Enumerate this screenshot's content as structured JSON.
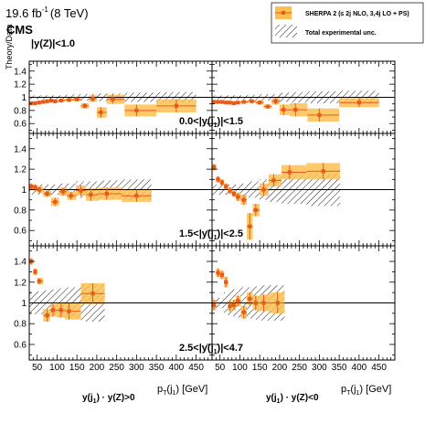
{
  "header": {
    "lumi": "19.6 fb",
    "lumi_exp": "-1",
    "energy": "(8 TeV)",
    "experiment": "CMS",
    "y_title": "Theory/Data",
    "yz_cut": "|y(Z)|<1.0",
    "x_title": "p",
    "x_title_sub": "T",
    "x_title_jet": "(j",
    "x_title_jet_sub": "1",
    "x_title_unit": ") [GeV]",
    "col_label_left_prefix": "y(j",
    "col_label_left_sub": "1",
    "col_label_left_suffix": ") · y(Z)>0",
    "col_label_right_prefix": "y(j",
    "col_label_right_sub": "1",
    "col_label_right_suffix": ") · y(Z)<0"
  },
  "legend": {
    "sherpa": "SHERPA 2 (≤ 2j NLO, 3,4j LO + PS)",
    "exp_unc": "Total experimental unc."
  },
  "rows": [
    {
      "prefix": "0.0<|y(j",
      "sub": "1",
      "suffix": ")|<1.5"
    },
    {
      "prefix": "1.5<|y(j",
      "sub": "1",
      "suffix": ")|<2.5"
    },
    {
      "prefix": "2.5<|y(j",
      "sub": "1",
      "suffix": ")|<4.7"
    }
  ],
  "axes": {
    "x_ticks": [
      50,
      100,
      150,
      200,
      250,
      300,
      350,
      400,
      450
    ],
    "y_ticks_top": [
      "1.4",
      "1.2",
      "1",
      "0.8",
      "0.6"
    ],
    "y_ticks_other": [
      "1.4",
      "1.2",
      "1",
      "0.8",
      "0.6"
    ]
  },
  "colors": {
    "theory_band": "#fdbf50",
    "theory_points": "#e85a1c",
    "hatch": "#000000"
  },
  "chart_data": [
    {
      "panel": "top-left",
      "type": "scatter",
      "xlim": [
        30,
        490
      ],
      "ylim": [
        0.45,
        1.55
      ],
      "x": [
        35,
        45,
        55,
        65,
        75,
        85,
        95,
        110,
        130,
        150,
        170,
        190,
        210,
        240,
        300,
        400
      ],
      "y": [
        0.91,
        0.91,
        0.92,
        0.93,
        0.94,
        0.95,
        0.94,
        0.95,
        0.96,
        0.97,
        0.87,
        0.98,
        0.77,
        0.97,
        0.8,
        0.87
      ],
      "theory_unc": [
        0.02,
        0.02,
        0.02,
        0.02,
        0.02,
        0.02,
        0.02,
        0.02,
        0.02,
        0.03,
        0.04,
        0.05,
        0.08,
        0.07,
        0.09,
        0.1
      ],
      "exp_unc": [
        0.03,
        0.03,
        0.03,
        0.03,
        0.03,
        0.03,
        0.03,
        0.03,
        0.04,
        0.05,
        0.05,
        0.05,
        0.06,
        0.06,
        0.07,
        0.08
      ]
    },
    {
      "panel": "top-right",
      "type": "scatter",
      "xlim": [
        30,
        490
      ],
      "ylim": [
        0.45,
        1.55
      ],
      "x": [
        35,
        45,
        55,
        65,
        75,
        85,
        95,
        110,
        130,
        150,
        170,
        190,
        210,
        240,
        300,
        400
      ],
      "y": [
        0.93,
        0.93,
        0.93,
        0.92,
        0.92,
        0.91,
        0.92,
        0.93,
        0.94,
        0.92,
        0.86,
        0.94,
        0.81,
        0.81,
        0.73,
        0.92
      ],
      "theory_unc": [
        0.02,
        0.02,
        0.02,
        0.02,
        0.02,
        0.02,
        0.02,
        0.02,
        0.02,
        0.03,
        0.03,
        0.05,
        0.08,
        0.1,
        0.1,
        0.07
      ],
      "exp_unc": [
        0.03,
        0.03,
        0.03,
        0.03,
        0.03,
        0.03,
        0.03,
        0.03,
        0.04,
        0.05,
        0.05,
        0.05,
        0.07,
        0.08,
        0.09,
        0.1
      ]
    },
    {
      "panel": "middle-left",
      "type": "scatter",
      "xlim": [
        30,
        490
      ],
      "ylim": [
        0.45,
        1.55
      ],
      "x": [
        35,
        45,
        55,
        75,
        95,
        115,
        135,
        160,
        185,
        225,
        300
      ],
      "y": [
        1.03,
        1.02,
        1.0,
        0.96,
        0.88,
        0.98,
        0.94,
        0.99,
        0.95,
        0.96,
        0.94
      ],
      "theory_unc": [
        0.03,
        0.03,
        0.03,
        0.03,
        0.04,
        0.04,
        0.04,
        0.05,
        0.06,
        0.06,
        0.06
      ],
      "exp_unc": [
        0.05,
        0.05,
        0.05,
        0.05,
        0.05,
        0.06,
        0.06,
        0.08,
        0.08,
        0.09,
        0.1
      ]
    },
    {
      "panel": "middle-right",
      "type": "scatter",
      "xlim": [
        30,
        490
      ],
      "ylim": [
        0.45,
        1.55
      ],
      "x": [
        35,
        45,
        55,
        65,
        75,
        85,
        95,
        110,
        125,
        140,
        160,
        185,
        225,
        310
      ],
      "y": [
        1.22,
        1.1,
        1.07,
        1.03,
        0.99,
        0.96,
        0.93,
        0.9,
        0.64,
        0.8,
        1.0,
        1.09,
        1.17,
        1.18
      ],
      "theory_unc": [
        0.03,
        0.03,
        0.03,
        0.03,
        0.03,
        0.03,
        0.04,
        0.05,
        0.13,
        0.06,
        0.06,
        0.06,
        0.07,
        0.08
      ],
      "exp_unc": [
        0.05,
        0.05,
        0.05,
        0.05,
        0.05,
        0.05,
        0.05,
        0.06,
        0.08,
        0.08,
        0.1,
        0.12,
        0.14,
        0.16
      ]
    },
    {
      "panel": "bottom-left",
      "type": "scatter",
      "xlim": [
        30,
        490
      ],
      "ylim": [
        0.45,
        1.55
      ],
      "x": [
        35,
        45,
        55,
        75,
        90,
        110,
        130,
        190
      ],
      "y": [
        1.4,
        1.3,
        1.21,
        0.88,
        0.93,
        0.93,
        0.92,
        1.09
      ],
      "theory_unc": [
        0.03,
        0.03,
        0.03,
        0.06,
        0.06,
        0.07,
        0.08,
        0.1
      ],
      "exp_unc": [
        0.1,
        0.11,
        0.11,
        0.12,
        0.13,
        0.14,
        0.15,
        0.18
      ]
    },
    {
      "panel": "bottom-right",
      "type": "scatter",
      "xlim": [
        30,
        490
      ],
      "ylim": [
        0.45,
        1.55
      ],
      "x": [
        35,
        45,
        55,
        65,
        75,
        85,
        95,
        110,
        125,
        140,
        160,
        195
      ],
      "y": [
        0.98,
        1.29,
        1.27,
        1.2,
        0.97,
        0.98,
        1.02,
        0.91,
        1.04,
        1.0,
        1.0,
        1.0
      ],
      "theory_unc": [
        0.05,
        0.04,
        0.04,
        0.05,
        0.05,
        0.05,
        0.05,
        0.06,
        0.06,
        0.07,
        0.08,
        0.1
      ],
      "exp_unc": [
        0.05,
        0.05,
        0.05,
        0.1,
        0.12,
        0.13,
        0.14,
        0.15,
        0.15,
        0.16,
        0.17,
        0.17
      ]
    }
  ]
}
